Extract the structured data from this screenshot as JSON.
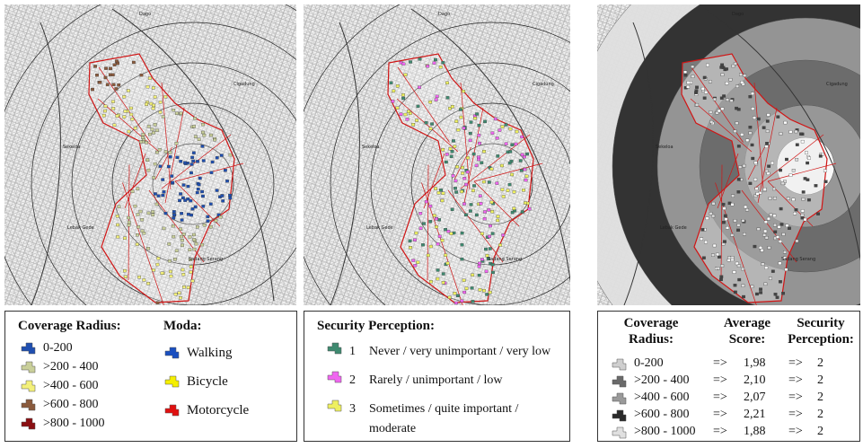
{
  "panels": [
    {
      "places": [
        "Dago",
        "Cigadung",
        "Sekeloa",
        "Lebak Gede",
        "Sadang Serang"
      ],
      "legend": {
        "title": "Coverage Radius:",
        "items": [
          {
            "label": "0-200",
            "color": "#1f4fb0"
          },
          {
            "label": ">200 - 400",
            "color": "#c9cf9a"
          },
          {
            "label": ">400 - 600",
            "color": "#f3f07a"
          },
          {
            "label": ">600 - 800",
            "color": "#8a5a3c"
          },
          {
            "label": ">800 - 1000",
            "color": "#8a0f12"
          }
        ],
        "moda_title": "Moda:",
        "moda": [
          {
            "label": "Walking",
            "color": "#1a4fc0"
          },
          {
            "label": "Bicycle",
            "color": "#f5ef00"
          },
          {
            "label": "Motorcycle",
            "color": "#e01010"
          }
        ]
      }
    },
    {
      "places": [
        "Dago",
        "Cigadung",
        "Sekeloa",
        "Lebak Gede",
        "Sadang Serang"
      ],
      "legend": {
        "title": "Security Perception:",
        "items": [
          {
            "number": "1",
            "label": "Never / very unimportant / very low",
            "color": "#3f8a70"
          },
          {
            "number": "2",
            "label": "Rarely / unimportant / low",
            "color": "#f066f0"
          },
          {
            "number": "3",
            "label": "Sometimes / quite important / moderate",
            "color": "#eef060"
          }
        ]
      }
    },
    {
      "places": [
        "Dago",
        "Cigadung",
        "Sekeloa",
        "Lebak Gede",
        "Sadang Serang"
      ],
      "legend": {
        "headers": [
          "Coverage Radius:",
          "Average Score:",
          "Security Perception:"
        ],
        "rows": [
          {
            "radius": "0-200",
            "arrow1": "=>",
            "score": "1,98",
            "arrow2": "=>",
            "perception": "2",
            "color": "#cfcfcf"
          },
          {
            "radius": ">200 - 400",
            "arrow1": "=>",
            "score": "2,10",
            "arrow2": "=>",
            "perception": "2",
            "color": "#6a6a6a"
          },
          {
            "radius": ">400 - 600",
            "arrow1": "=>",
            "score": "2,07",
            "arrow2": "=>",
            "perception": "2",
            "color": "#9a9a9a"
          },
          {
            "radius": ">600 - 800",
            "arrow1": "=>",
            "score": "2,21",
            "arrow2": "=>",
            "perception": "2",
            "color": "#2a2a2a"
          },
          {
            "radius": ">800 - 1000",
            "arrow1": "=>",
            "score": "1,88",
            "arrow2": "=>",
            "perception": "2",
            "color": "#e0e0e0"
          }
        ]
      }
    }
  ]
}
